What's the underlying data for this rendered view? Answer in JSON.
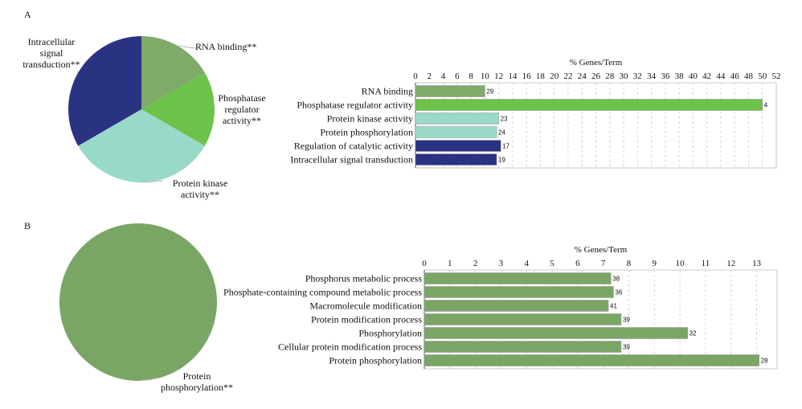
{
  "chart_data": {
    "panels": [
      {
        "panel_label": "A",
        "charts": [
          {
            "type": "pie",
            "slices": [
              {
                "label": "RNA binding**",
                "value": 1,
                "color": "#7faa6a"
              },
              {
                "label": "Phosphatase\nregulator\nactivity**",
                "value": 1,
                "color": "#6dc24a"
              },
              {
                "label": "Protein kinase\nactivity**",
                "value": 2,
                "color": "#99d9c9"
              },
              {
                "label": "Intracellular\nsignal\ntransduction**",
                "value": 2,
                "color": "#2a3282"
              }
            ]
          },
          {
            "type": "bar",
            "orientation": "horizontal",
            "xlabel": "% Genes/Term",
            "xlim": [
              0,
              52
            ],
            "ticks": [
              0,
              2,
              4,
              6,
              8,
              10,
              12,
              14,
              16,
              18,
              20,
              22,
              24,
              26,
              28,
              30,
              32,
              34,
              36,
              38,
              40,
              42,
              44,
              46,
              48,
              50,
              52
            ],
            "categories": [
              "RNA binding",
              "Phosphatase regulator activity",
              "Protein kinase activity",
              "Protein phosphorylation",
              "Regulation of catalytic activity",
              "Intracellular signal transduction"
            ],
            "values": [
              10,
              50,
              12,
              11.7,
              12.3,
              11.7
            ],
            "labels": [
              "29",
              "4",
              "23",
              "24",
              "17",
              "19"
            ],
            "colors": [
              "#7faa6a",
              "#6dc24a",
              "#99d9c9",
              "#99d9c9",
              "#2a3282",
              "#2a3282"
            ]
          }
        ]
      },
      {
        "panel_label": "B",
        "charts": [
          {
            "type": "pie",
            "slices": [
              {
                "label": "Protein\nphosphorylation**",
                "value": 1,
                "color": "#7aa665"
              }
            ]
          },
          {
            "type": "bar",
            "orientation": "horizontal",
            "xlabel": "% Genes/Term",
            "xlim": [
              0,
              13.8
            ],
            "ticks": [
              0,
              1,
              2,
              3,
              4,
              5,
              6,
              7,
              8,
              9,
              10,
              11,
              12,
              13
            ],
            "categories": [
              "Phosphorus metabolic process",
              "Phosphate-containing compound metabolic process",
              "Macromolecule modification",
              "Protein modification process",
              "Phosphorylation",
              "Cellular protein modification process",
              "Protein phosphorylation"
            ],
            "values": [
              7.3,
              7.4,
              7.2,
              7.7,
              10.3,
              7.7,
              13.1
            ],
            "labels": [
              "38",
              "36",
              "41",
              "39",
              "32",
              "39",
              "28"
            ],
            "colors": [
              "#7aa665",
              "#7aa665",
              "#7aa665",
              "#7aa665",
              "#7aa665",
              "#7aa665",
              "#7aa665"
            ]
          }
        ]
      }
    ]
  }
}
